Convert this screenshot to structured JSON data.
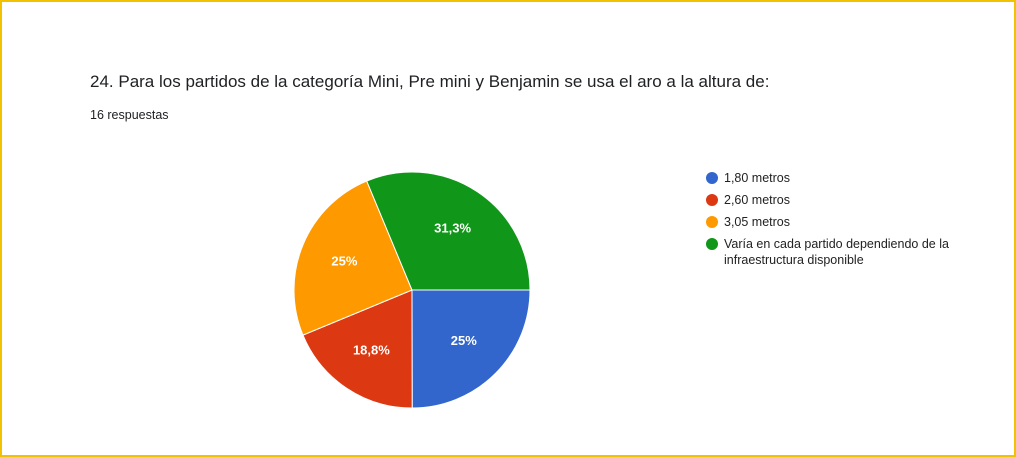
{
  "chart_data": {
    "type": "pie",
    "title": "24. Para los partidos de la categoría Mini, Pre mini y Benjamin se usa el aro a la altura de:",
    "subtitle": "16 respuestas",
    "categories": [
      "1,80 metros",
      "2,60 metros",
      "3,05 metros",
      "Varía en cada partido dependiendo de la infraestructura disponible"
    ],
    "values": [
      25,
      18.8,
      25,
      31.3
    ],
    "value_labels": [
      "25%",
      "18,8%",
      "25%",
      "31,3%"
    ],
    "colors": [
      "#3366cc",
      "#dc3912",
      "#ff9900",
      "#109618"
    ],
    "legend": "right"
  }
}
